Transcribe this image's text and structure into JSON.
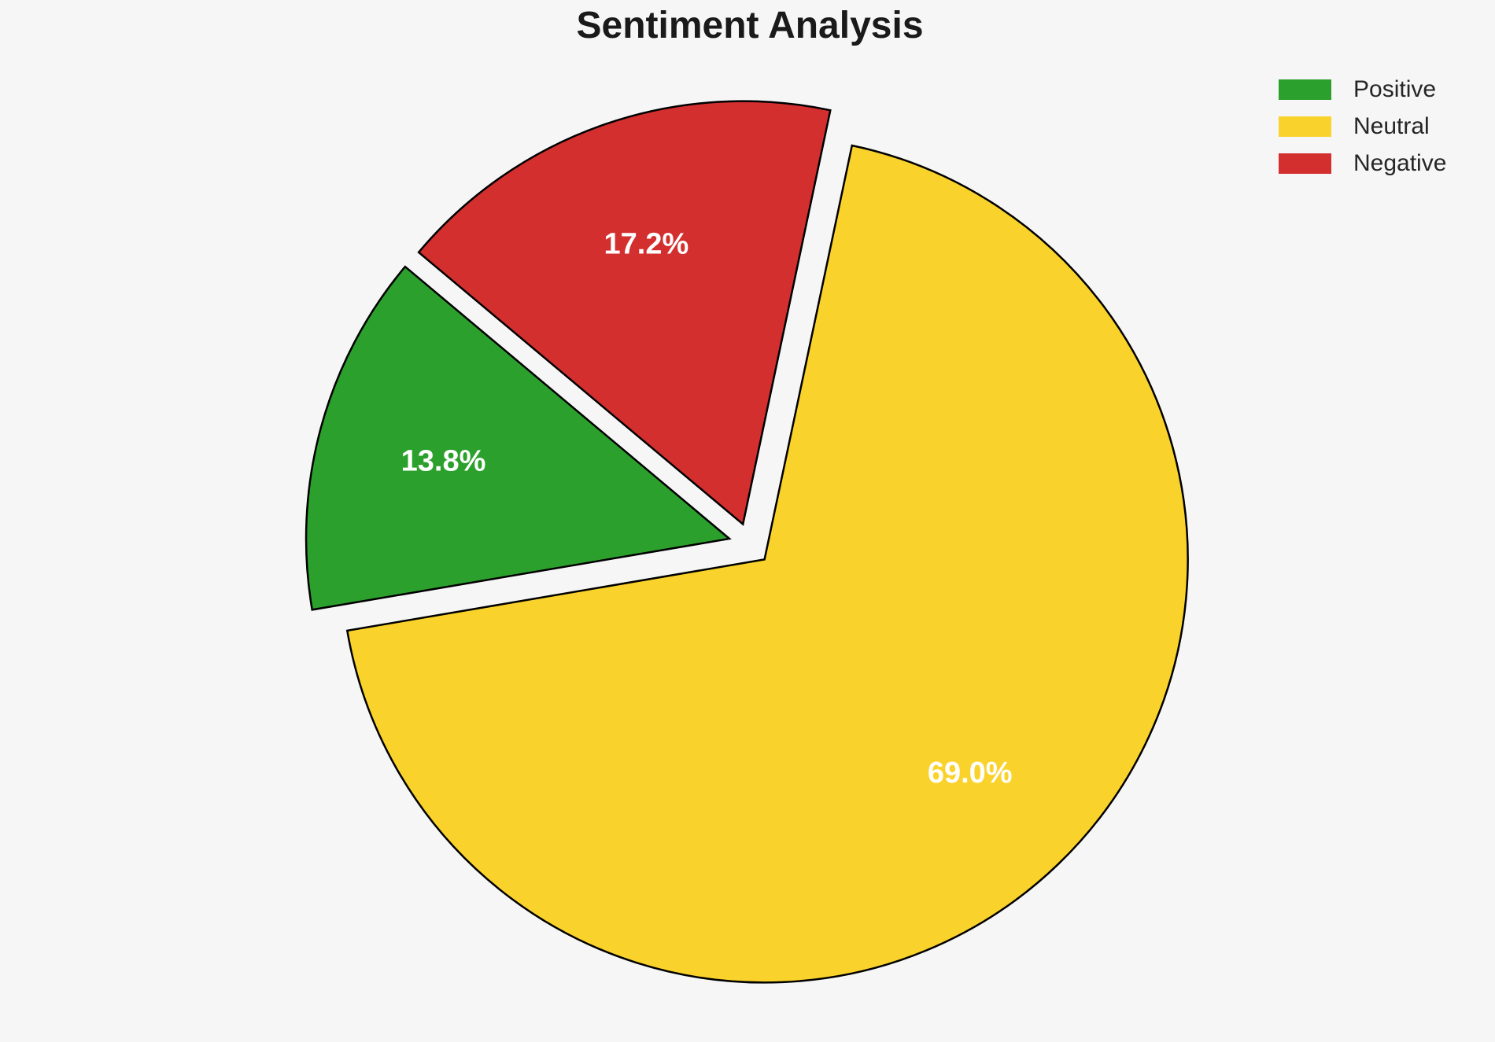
{
  "title": "Sentiment Analysis",
  "chart_data": {
    "type": "pie",
    "title": "Sentiment Analysis",
    "categories": [
      "Positive",
      "Neutral",
      "Negative"
    ],
    "values": [
      13.8,
      69.0,
      17.2
    ],
    "slice_labels": [
      "13.8%",
      "69.0%",
      "17.2%"
    ],
    "colors": [
      "#2ca02c",
      "#fad22c",
      "#d32f2f"
    ],
    "label_color": "#ffffff",
    "edge_color": "#000000",
    "background": "#f6f6f6",
    "startangle": 140,
    "counterclock": true,
    "explode": [
      0.05,
      0.05,
      0.05
    ],
    "pctdistance": 0.7,
    "legend": {
      "position": "upper right",
      "frame": false,
      "entries": [
        {
          "label": "Positive",
          "color": "#2ca02c"
        },
        {
          "label": "Neutral",
          "color": "#fad22c"
        },
        {
          "label": "Negative",
          "color": "#d32f2f"
        }
      ]
    }
  }
}
